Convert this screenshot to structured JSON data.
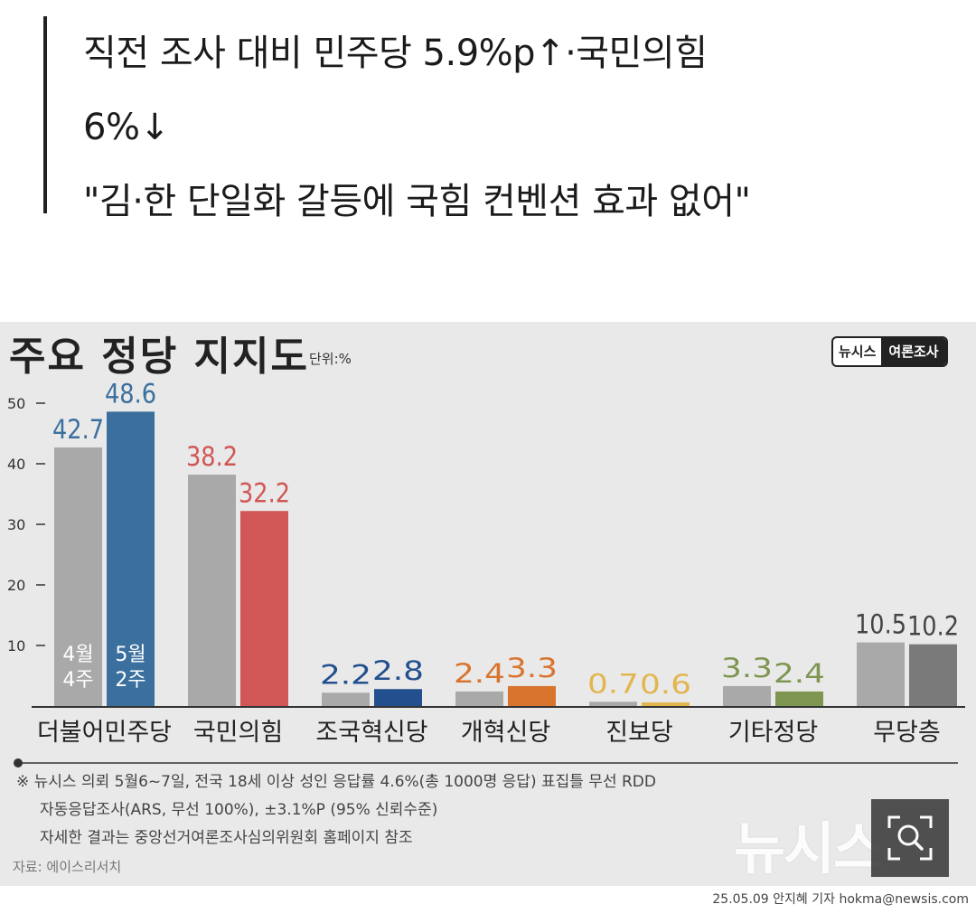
{
  "headline": {
    "lines": [
      "직전 조사 대비 민주당 5.9%p↑·국민의힘",
      "6%↓",
      "\"김·한 단일화 갈등에 국힘 컨벤션 효과 없어\""
    ]
  },
  "infographic": {
    "title": "주요 정당 지지도",
    "unit": "단위:%",
    "brand_left": "뉴시스",
    "brand_right": "여론조사",
    "notes": [
      "※ 뉴시스 의뢰 5월6~7일, 전국 18세 이상 성인 응답률 4.6%(총 1000명 응답) 표집틀 무선 RDD",
      "자동응답조사(ARS, 무선 100%), ±3.1%P (95% 신뢰수준)",
      "자세한 결과는 중앙선거여론조사심의위원회 홈페이지 참조"
    ],
    "source": "자료: 에이스리서치",
    "watermark": "뉴시스",
    "credit": "25.05.09 안지혜 기자 hokma@newsis.com"
  },
  "chart_data": {
    "type": "bar",
    "title": "주요 정당 지지도",
    "ylabel": "단위:%",
    "ylim": [
      0,
      50
    ],
    "yticks": [
      10,
      20,
      30,
      40,
      50
    ],
    "categories": [
      "더불어민주당",
      "국민의힘",
      "조국혁신당",
      "개혁신당",
      "진보당",
      "기타정당",
      "무당층"
    ],
    "series": [
      {
        "name": "4월 4주",
        "name_lines": [
          "4월",
          "4주"
        ],
        "values": [
          42.7,
          38.2,
          2.2,
          2.4,
          0.7,
          3.3,
          10.5
        ]
      },
      {
        "name": "5월 2주",
        "name_lines": [
          "5월",
          "2주"
        ],
        "values": [
          48.6,
          32.2,
          2.8,
          3.3,
          0.6,
          2.4,
          10.2
        ]
      }
    ],
    "prev_bar_color": "#a9a9a9",
    "bar_colors": [
      "#3a6f9e",
      "#d15656",
      "#22508e",
      "#d9742f",
      "#e2b64f",
      "#7e9651",
      "#7a7a7a"
    ],
    "label_colors": {
      "prev": [
        "#3a6f9e",
        "#d15656",
        "#22508e",
        "#d9742f",
        "#e2b64f",
        "#7e9651",
        "#444444"
      ],
      "curr": [
        "#3a6f9e",
        "#d15656",
        "#22508e",
        "#d9742f",
        "#e2b64f",
        "#7e9651",
        "#444444"
      ]
    }
  }
}
